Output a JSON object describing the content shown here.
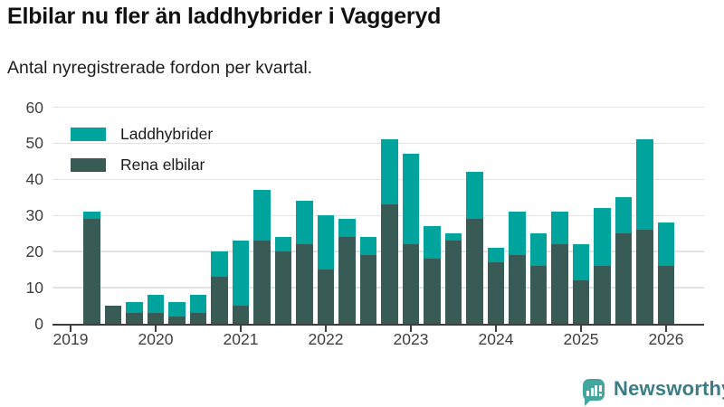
{
  "header": {
    "title": "Elbilar nu fler än laddhybrider i Vaggeryd",
    "subtitle": "Antal nyregistrerade fordon per kvartal."
  },
  "chart_data": {
    "type": "bar",
    "stacked": true,
    "categories": [
      "2019K2",
      "2019K3",
      "2019K4",
      "2020K1",
      "2020K2",
      "2020K3",
      "2020K4",
      "2021K1",
      "2021K2",
      "2021K3",
      "2021K4",
      "2022K1",
      "2022K2",
      "2022K3",
      "2022K4",
      "2023K1",
      "2023K2",
      "2023K3",
      "2023K4",
      "2024K1",
      "2024K2",
      "2024K3",
      "2024K4",
      "2025K1",
      "2025K2",
      "2025K3",
      "2025K4",
      "2026K1"
    ],
    "series": [
      {
        "name": "Laddhybrider",
        "color": "#00A49D",
        "values": [
          2,
          0,
          3,
          5,
          4,
          5,
          7,
          18,
          14,
          4,
          12,
          15,
          5,
          5,
          18,
          25,
          9,
          2,
          13,
          4,
          12,
          9,
          9,
          10,
          16,
          10,
          25,
          12
        ]
      },
      {
        "name": "Rena elbilar",
        "color": "#395B55",
        "values": [
          29,
          5,
          3,
          3,
          2,
          3,
          13,
          5,
          23,
          20,
          22,
          15,
          24,
          19,
          33,
          22,
          18,
          23,
          29,
          17,
          19,
          16,
          22,
          12,
          16,
          25,
          26,
          16
        ]
      }
    ],
    "stack_bottom_series": "Rena elbilar",
    "totals": [
      31,
      5,
      6,
      8,
      6,
      8,
      20,
      23,
      37,
      24,
      34,
      30,
      29,
      24,
      51,
      47,
      27,
      25,
      42,
      21,
      31,
      25,
      31,
      22,
      32,
      35,
      51,
      28
    ],
    "ylim": [
      0,
      60
    ],
    "yticks": [
      0,
      10,
      20,
      30,
      40,
      50,
      60
    ],
    "year_ticks": [
      "2019",
      "2020",
      "2021",
      "2022",
      "2023",
      "2024",
      "2025",
      "2026"
    ],
    "grid": true,
    "legend_position": "top-left",
    "xlabel": "",
    "ylabel": ""
  },
  "footer": {
    "brand": "Newsworthy"
  }
}
